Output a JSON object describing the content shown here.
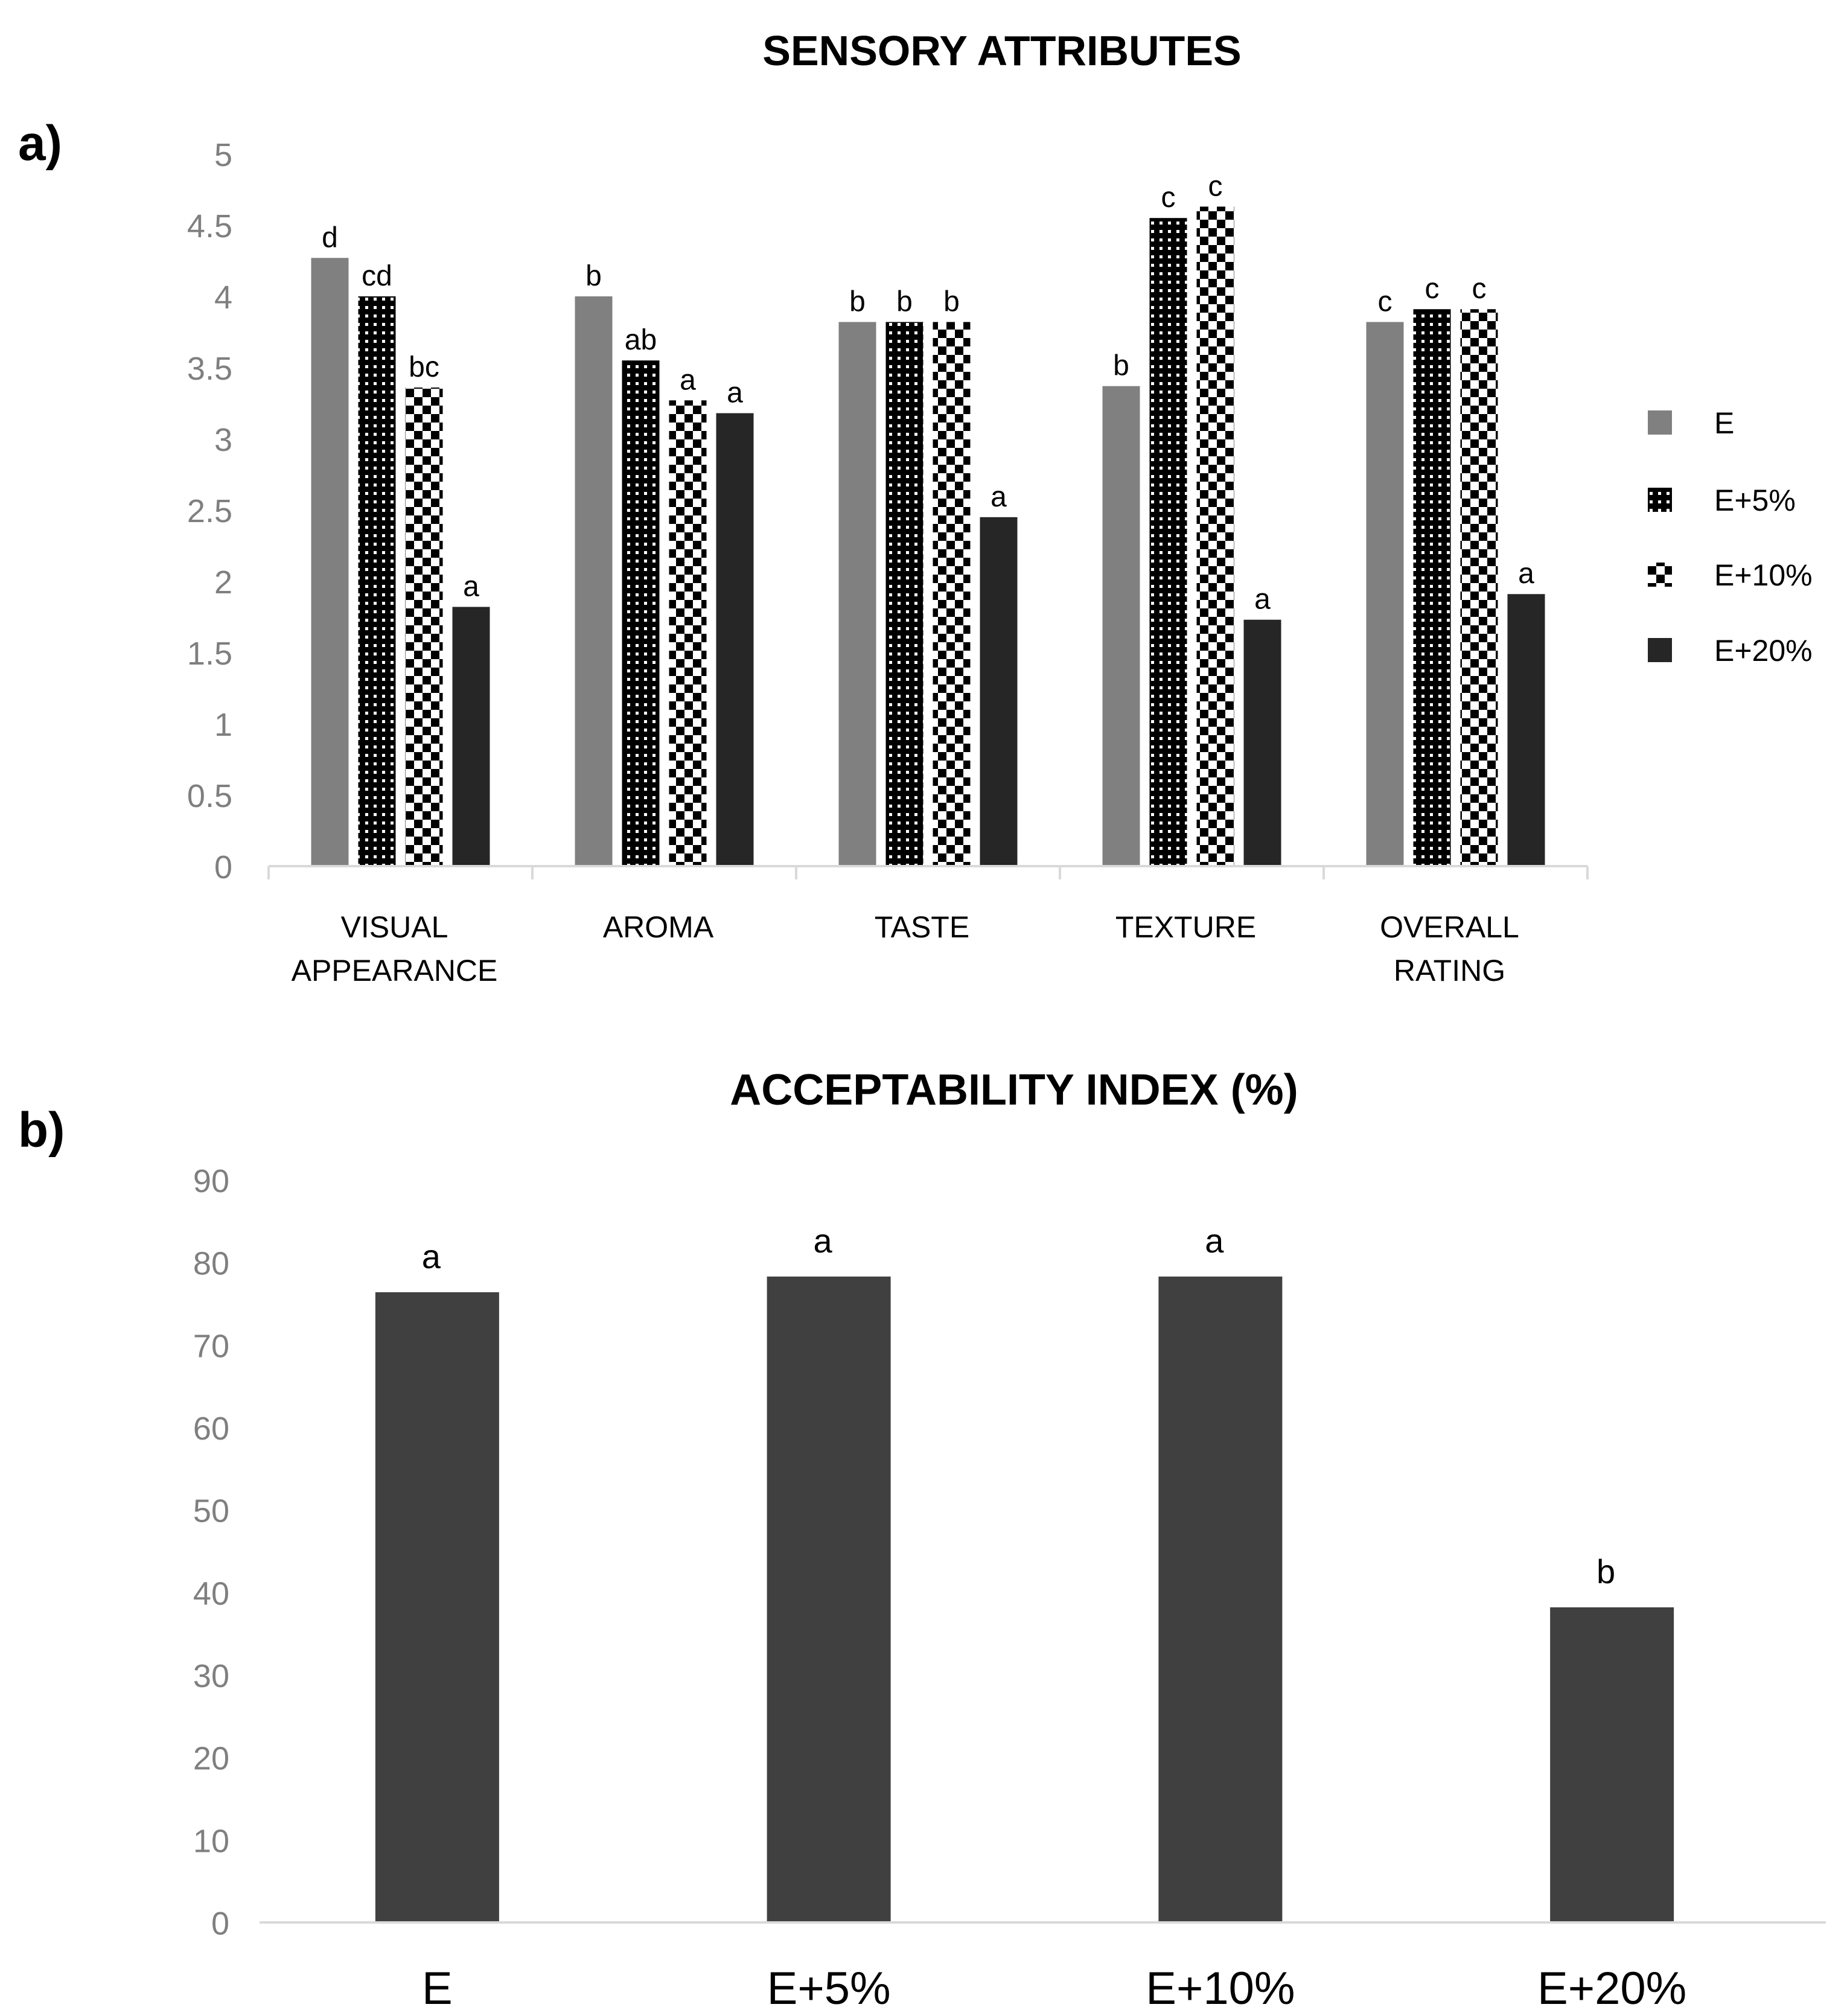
{
  "chart_data": [
    {
      "panel_label": "a)",
      "type": "bar",
      "title": "SENSORY ATTRIBUTES",
      "categories": [
        "VISUAL APPEARANCE",
        "AROMA",
        "TASTE",
        "TEXTURE",
        "OVERALL RATING"
      ],
      "series": [
        {
          "name": "E",
          "values": [
            4.27,
            4.0,
            3.82,
            3.37,
            3.82
          ],
          "letters": [
            "d",
            "b",
            "b",
            "b",
            "c"
          ],
          "pattern": "solid-gray",
          "color": "#808080"
        },
        {
          "name": "E+5%",
          "values": [
            4.0,
            3.55,
            3.82,
            4.55,
            3.91
          ],
          "letters": [
            "cd",
            "ab",
            "b",
            "c",
            "c"
          ],
          "pattern": "dots",
          "color": "#000000"
        },
        {
          "name": "E+10%",
          "values": [
            3.36,
            3.27,
            3.82,
            4.63,
            3.91
          ],
          "letters": [
            "bc",
            "a",
            "b",
            "c",
            "c"
          ],
          "pattern": "checker",
          "color": "#000000"
        },
        {
          "name": "E+20%",
          "values": [
            1.82,
            3.18,
            2.45,
            1.73,
            1.91
          ],
          "letters": [
            "a",
            "a",
            "a",
            "a",
            "a"
          ],
          "pattern": "solid-dark",
          "color": "#262626"
        }
      ],
      "ylim": [
        0,
        5
      ],
      "yticks": [
        "0",
        "0.5",
        "1",
        "1.5",
        "2",
        "2.5",
        "3",
        "3.5",
        "4",
        "4.5",
        "5"
      ],
      "legend_position": "right",
      "grid": false
    },
    {
      "panel_label": "b)",
      "type": "bar",
      "title": "ACCEPTABILITY INDEX (%)",
      "categories": [
        "E",
        "E+5%",
        "E+10%",
        "E+20%"
      ],
      "values": [
        76.4,
        78.3,
        78.3,
        38.2
      ],
      "letters": [
        "a",
        "a",
        "a",
        "b"
      ],
      "color": "#404040",
      "ylim": [
        0,
        90
      ],
      "yticks": [
        "0",
        "10",
        "20",
        "30",
        "40",
        "50",
        "60",
        "70",
        "80",
        "90"
      ],
      "grid": false
    }
  ]
}
